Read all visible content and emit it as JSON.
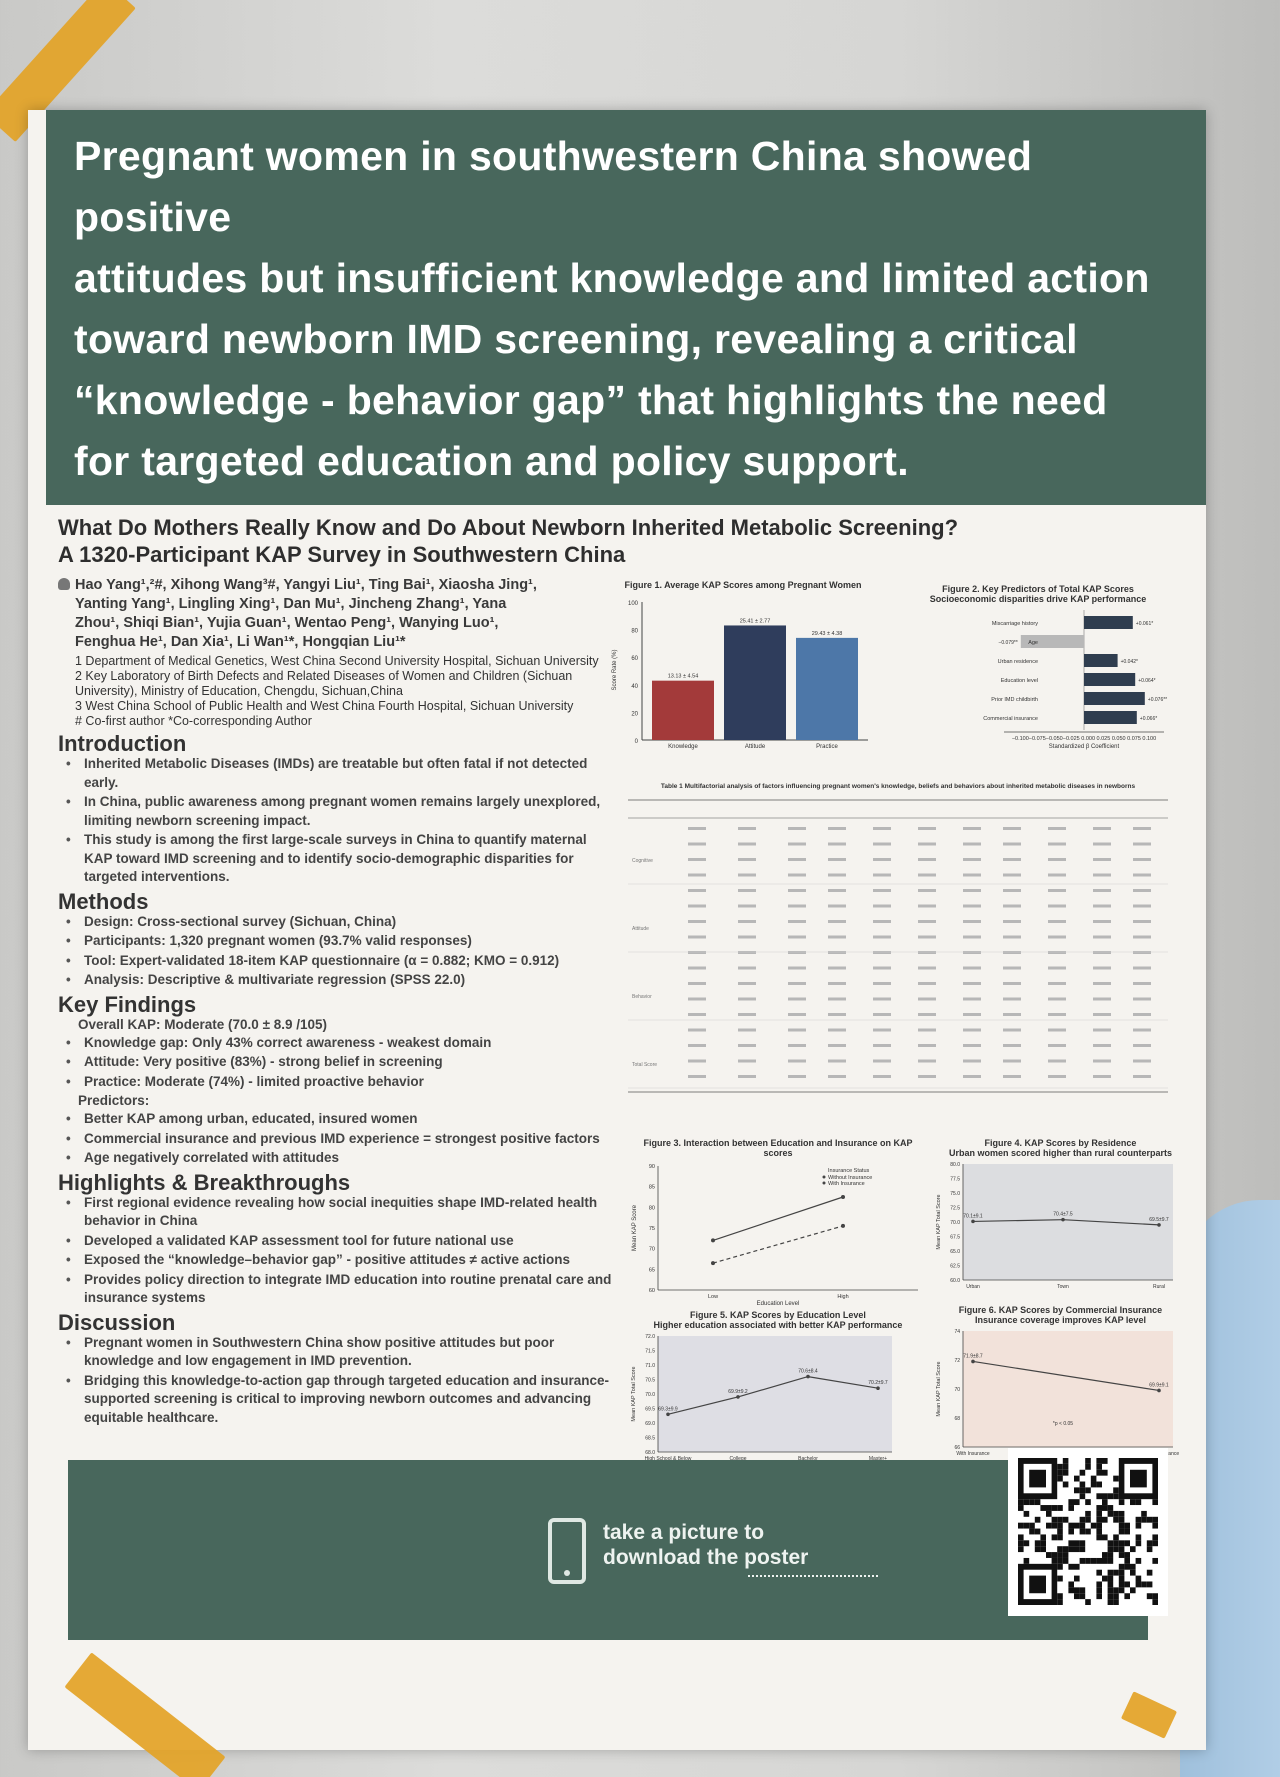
{
  "headline": [
    "Pregnant women in southwestern China showed positive",
    "attitudes but insufficient knowledge and limited action",
    "toward newborn IMD screening, revealing a critical",
    " “knowledge - behavior gap”  that highlights the need",
    "for targeted education and policy support."
  ],
  "subtitle": [
    "What Do Mothers Really Know and Do About Newborn Inherited Metabolic Screening?",
    "A 1320-Participant KAP Survey in Southwestern China"
  ],
  "authors": [
    "Hao Yang¹,²#, Xihong Wang³#, Yangyi Liu¹, Ting Bai¹, Xiaosha Jing¹,",
    "Yanting Yang¹, Lingling Xing¹, Dan Mu¹, Jincheng Zhang¹, Yana",
    "Zhou¹, Shiqi Bian¹, Yujia Guan¹, Wentao Peng¹, Wanying Luo¹,",
    "Fenghua He¹, Dan Xia¹, Li Wan¹*, Hongqian Liu¹*"
  ],
  "affiliations": [
    "1 Department of Medical Genetics, West China Second University Hospital, Sichuan University",
    "2 Key Laboratory of Birth Defects and Related Diseases of Women and Children (Sichuan University), Ministry of Education, Chengdu, Sichuan,China",
    "3 West China School of Public Health and West China Fourth Hospital, Sichuan University",
    "# Co-first author *Co-corresponding Author"
  ],
  "introduction": {
    "title": "Introduction",
    "items": [
      "Inherited Metabolic Diseases (IMDs) are treatable but often fatal if not detected early.",
      "In China, public awareness among pregnant women remains largely unexplored, limiting newborn screening impact.",
      "This study is among the first large-scale surveys in China to quantify maternal KAP toward IMD screening and to identify socio-demographic disparities for targeted interventions."
    ]
  },
  "methods": {
    "title": "Methods",
    "items": [
      "Design: Cross-sectional survey (Sichuan, China)",
      "Participants: 1,320 pregnant women (93.7% valid responses)",
      "Tool: Expert-validated 18-item KAP questionnaire (α = 0.882; KMO = 0.912)",
      "Analysis: Descriptive & multivariate regression (SPSS 22.0)"
    ]
  },
  "findings": {
    "title": "Key Findings",
    "overall": "Overall KAP: Moderate (70.0 ± 8.9 /105)",
    "items": [
      "Knowledge gap: Only 43% correct awareness - weakest domain",
      "Attitude: Very positive (83%) - strong belief in screening",
      "Practice: Moderate (74%) - limited proactive behavior"
    ],
    "predictors_label": "Predictors:",
    "predictors": [
      "Better KAP among urban, educated, insured women",
      "Commercial insurance and previous IMD experience = strongest positive factors",
      "Age negatively correlated with attitudes"
    ]
  },
  "highlights": {
    "title": "Highlights & Breakthroughs",
    "items": [
      "First regional evidence revealing how social inequities shape IMD-related health behavior in China",
      "Developed a validated KAP assessment tool for future national use",
      "Exposed the  “knowledge–behavior gap”  - positive attitudes ≠ active actions",
      "Provides policy direction to integrate IMD education into routine prenatal care and insurance systems"
    ]
  },
  "discussion": {
    "title": "Discussion",
    "items": [
      "Pregnant women in Southwestern China show positive attitudes but poor knowledge and low engagement in IMD prevention.",
      "Bridging this knowledge-to-action gap through targeted education and insurance-supported screening is critical to improving newborn outcomes and advancing equitable healthcare."
    ]
  },
  "fig1": {
    "title": "Figure 1. Average KAP Scores among Pregnant Women",
    "ylabel": "Score Rate (%)",
    "categories": [
      "Knowledge",
      "Attitude",
      "Practice"
    ],
    "values": [
      43,
      83,
      74
    ],
    "labels": [
      "13.13 ± 4.54",
      "25.41 ± 2.77",
      "29.43 ± 4.38"
    ],
    "yticks": [
      "0",
      "20",
      "40",
      "60",
      "80",
      "100"
    ],
    "colors": [
      "#a33a3a",
      "#2f3d5c",
      "#4d77a8"
    ]
  },
  "fig2": {
    "title": "Figure 2. Key Predictors of Total KAP Scores",
    "subtitle": "Socioeconomic disparities drive KAP performance",
    "xlabel": "Standardized β Coefficient",
    "xticks": "−0.100−0.075−0.050−0.025 0.000 0.025 0.050 0.075 0.100",
    "items": [
      {
        "name": "Miscarriage history",
        "value": 0.061,
        "label": "+0.061*"
      },
      {
        "name": "Age",
        "value": -0.079,
        "label": "−0.079**"
      },
      {
        "name": "Urban residence",
        "value": 0.042,
        "label": "+0.042*"
      },
      {
        "name": "Education level",
        "value": 0.064,
        "label": "+0.064*"
      },
      {
        "name": "Prior IMD childbirth",
        "value": 0.076,
        "label": "+0.076**"
      },
      {
        "name": "Commercial insurance",
        "value": 0.066,
        "label": "+0.066*"
      }
    ]
  },
  "table1": {
    "title": "Table 1 Multifactorial analysis of factors influencing pregnant women's knowledge, beliefs and behaviors about inherited metabolic diseases in newborns",
    "groups": [
      "Cognitive",
      "Attitude",
      "Behavior",
      "Total Score"
    ]
  },
  "fig3": {
    "title": "Figure 3. Interaction between Education and Insurance on KAP scores",
    "xlabel": "Education Level",
    "ylabel": "Mean KAP Score",
    "categories": [
      "Low",
      "High"
    ],
    "legend_title": "Insurance Status",
    "series": [
      {
        "name": "Without Insurance",
        "values": [
          66.5,
          75.5
        ]
      },
      {
        "name": "With Insurance",
        "values": [
          72.0,
          82.5
        ]
      }
    ],
    "yticks": [
      "60",
      "65",
      "70",
      "75",
      "80",
      "85",
      "90"
    ]
  },
  "fig4": {
    "title": "Figure 4. KAP Scores by Residence",
    "subtitle": "Urban women scored higher than rural counterparts",
    "ylabel": "Mean KAP Total Score",
    "categories": [
      "Urban",
      "Town",
      "Rural"
    ],
    "values": [
      70.1,
      70.4,
      69.5
    ],
    "labels": [
      "70.1±9.1",
      "70.4±7.5",
      "69.5±9.7"
    ],
    "yticks": [
      "60.0",
      "62.5",
      "65.0",
      "67.5",
      "70.0",
      "72.5",
      "75.0",
      "77.5",
      "80.0"
    ]
  },
  "fig5": {
    "title": "Figure 5. KAP Scores by Education Level",
    "subtitle": "Higher education associated with better KAP performance",
    "ylabel": "Mean KAP Total Score",
    "categories": [
      "High School & Below",
      "College",
      "Bachelor",
      "Master+"
    ],
    "values": [
      69.3,
      69.9,
      70.6,
      70.2
    ],
    "labels": [
      "69.3±9.9",
      "69.9±9.2",
      "70.6±8.4",
      "70.2±9.7"
    ],
    "yticks": [
      "68.0",
      "68.5",
      "69.0",
      "69.5",
      "70.0",
      "70.5",
      "71.0",
      "71.5",
      "72.0"
    ]
  },
  "fig6": {
    "title": "Figure 6. KAP Scores by Commercial Insurance",
    "subtitle": "Insurance coverage improves KAP level",
    "ylabel": "Mean KAP Total Score",
    "categories": [
      "With Insurance",
      "Without Insurance"
    ],
    "values": [
      71.9,
      69.9
    ],
    "labels": [
      "71.9±8.7",
      "69.9±9.1"
    ],
    "note": "*p < 0.05",
    "yticks": [
      "66",
      "68",
      "70",
      "72",
      "74"
    ]
  },
  "footer": {
    "line1": "take a picture to",
    "line2": "download the poster"
  }
}
